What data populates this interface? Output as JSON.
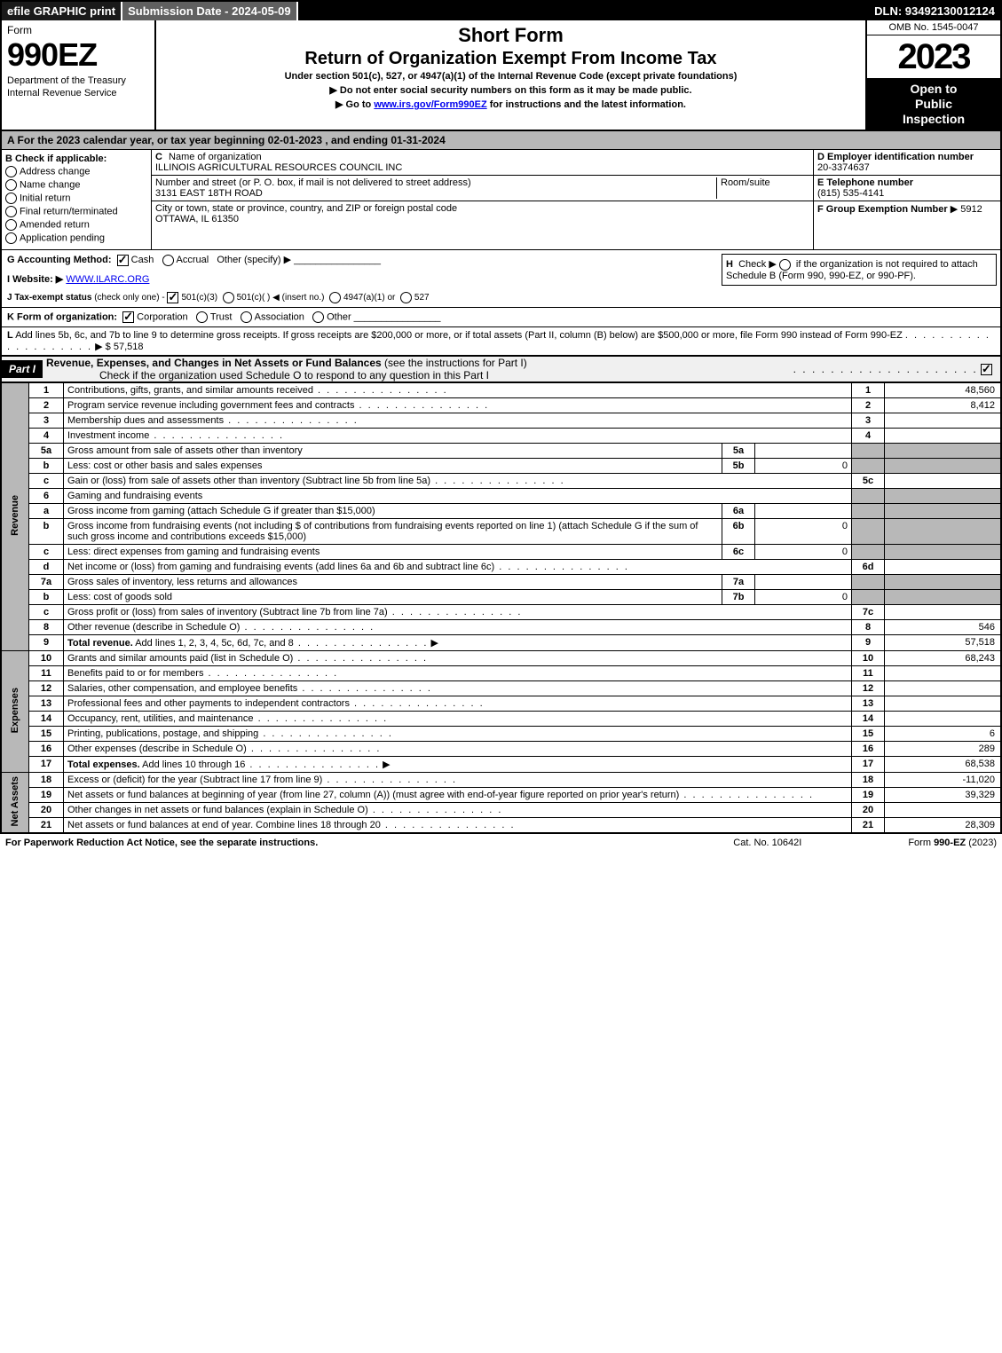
{
  "top_strip": {
    "efile": "efile GRAPHIC print",
    "submission": "Submission Date - 2024-05-09",
    "dln": "DLN: 93492130012124"
  },
  "header": {
    "form_label": "Form",
    "form_number": "990EZ",
    "dept1": "Department of the Treasury",
    "dept2": "Internal Revenue Service",
    "short_form": "Short Form",
    "main_title": "Return of Organization Exempt From Income Tax",
    "subtitle": "Under section 501(c), 527, or 4947(a)(1) of the Internal Revenue Code (except private foundations)",
    "instr1": "Do not enter social security numbers on this form as it may be made public.",
    "instr2_pre": "Go to ",
    "instr2_link": "www.irs.gov/Form990EZ",
    "instr2_post": " for instructions and the latest information.",
    "omb": "OMB No. 1545-0047",
    "year": "2023",
    "open1": "Open to",
    "open2": "Public",
    "open3": "Inspection"
  },
  "section_a": "A  For the 2023 calendar year, or tax year beginning 02-01-2023 , and ending 01-31-2024",
  "col_b": {
    "label": "B",
    "check_if": "Check if applicable:",
    "opts": [
      "Address change",
      "Name change",
      "Initial return",
      "Final return/terminated",
      "Amended return",
      "Application pending"
    ]
  },
  "col_c": {
    "name_label": "C",
    "name_text": "Name of organization",
    "org_name": "ILLINOIS AGRICULTURAL RESOURCES COUNCIL INC",
    "street_label": "Number and street (or P. O. box, if mail is not delivered to street address)",
    "room_label": "Room/suite",
    "street": "3131 EAST 18TH ROAD",
    "city_label": "City or town, state or province, country, and ZIP or foreign postal code",
    "city": "OTTAWA, IL  61350"
  },
  "col_d": {
    "ein_label": "D Employer identification number",
    "ein": "20-3374637",
    "phone_label": "E Telephone number",
    "phone": "(815) 535-4141",
    "group_label": "F Group Exemption Number",
    "group": "5912"
  },
  "g": {
    "label": "G Accounting Method:",
    "cash": "Cash",
    "accrual": "Accrual",
    "other": "Other (specify)"
  },
  "h": {
    "label": "H",
    "text1": "Check ▶",
    "text2": "if the organization is not required to attach Schedule B (Form 990, 990-EZ, or 990-PF)."
  },
  "i": {
    "label": "I Website: ▶",
    "site": "WWW.ILARC.ORG"
  },
  "j": {
    "label": "J Tax-exempt status",
    "note": "(check only one) -",
    "o1": "501(c)(3)",
    "o2": "501(c)(  )",
    "o2_note": "◀ (insert no.)",
    "o3": "4947(a)(1) or",
    "o4": "527"
  },
  "k": {
    "label": "K Form of organization:",
    "o1": "Corporation",
    "o2": "Trust",
    "o3": "Association",
    "o4": "Other"
  },
  "l": {
    "label": "L",
    "text": "Add lines 5b, 6c, and 7b to line 9 to determine gross receipts. If gross receipts are $200,000 or more, or if total assets (Part II, column (B) below) are $500,000 or more, file Form 990 instead of Form 990-EZ",
    "amount": "$ 57,518"
  },
  "part1": {
    "label": "Part I",
    "title": "Revenue, Expenses, and Changes in Net Assets or Fund Balances",
    "note": "(see the instructions for Part I)",
    "check_text": "Check if the organization used Schedule O to respond to any question in this Part I"
  },
  "revenue": {
    "side": "Revenue",
    "rows": [
      {
        "n": "1",
        "d": "Contributions, gifts, grants, and similar amounts received",
        "rn": "1",
        "rv": "48,560"
      },
      {
        "n": "2",
        "d": "Program service revenue including government fees and contracts",
        "rn": "2",
        "rv": "8,412"
      },
      {
        "n": "3",
        "d": "Membership dues and assessments",
        "rn": "3",
        "rv": ""
      },
      {
        "n": "4",
        "d": "Investment income",
        "rn": "4",
        "rv": ""
      },
      {
        "n": "5a",
        "d": "Gross amount from sale of assets other than inventory",
        "sn": "5a",
        "sv": "",
        "gray": true
      },
      {
        "n": "b",
        "d": "Less: cost or other basis and sales expenses",
        "sn": "5b",
        "sv": "0",
        "gray": true
      },
      {
        "n": "c",
        "d": "Gain or (loss) from sale of assets other than inventory (Subtract line 5b from line 5a)",
        "rn": "5c",
        "rv": ""
      },
      {
        "n": "6",
        "d": "Gaming and fundraising events",
        "gray": true,
        "gray_only": true
      },
      {
        "n": "a",
        "d": "Gross income from gaming (attach Schedule G if greater than $15,000)",
        "sn": "6a",
        "sv": "",
        "gray": true
      },
      {
        "n": "b",
        "d": "Gross income from fundraising events (not including $                    of contributions from fundraising events reported on line 1) (attach Schedule G if the sum of such gross income and contributions exceeds $15,000)",
        "sn": "6b",
        "sv": "0",
        "gray": true
      },
      {
        "n": "c",
        "d": "Less: direct expenses from gaming and fundraising events",
        "sn": "6c",
        "sv": "0",
        "gray": true
      },
      {
        "n": "d",
        "d": "Net income or (loss) from gaming and fundraising events (add lines 6a and 6b and subtract line 6c)",
        "rn": "6d",
        "rv": ""
      },
      {
        "n": "7a",
        "d": "Gross sales of inventory, less returns and allowances",
        "sn": "7a",
        "sv": "",
        "gray": true
      },
      {
        "n": "b",
        "d": "Less: cost of goods sold",
        "sn": "7b",
        "sv": "0",
        "gray": true
      },
      {
        "n": "c",
        "d": "Gross profit or (loss) from sales of inventory (Subtract line 7b from line 7a)",
        "rn": "7c",
        "rv": ""
      },
      {
        "n": "8",
        "d": "Other revenue (describe in Schedule O)",
        "rn": "8",
        "rv": "546"
      },
      {
        "n": "9",
        "d": "Total revenue. Add lines 1, 2, 3, 4, 5c, 6d, 7c, and 8",
        "rn": "9",
        "rv": "57,518",
        "bold": true,
        "arrow": true
      }
    ]
  },
  "expenses": {
    "side": "Expenses",
    "rows": [
      {
        "n": "10",
        "d": "Grants and similar amounts paid (list in Schedule O)",
        "rn": "10",
        "rv": "68,243"
      },
      {
        "n": "11",
        "d": "Benefits paid to or for members",
        "rn": "11",
        "rv": ""
      },
      {
        "n": "12",
        "d": "Salaries, other compensation, and employee benefits",
        "rn": "12",
        "rv": ""
      },
      {
        "n": "13",
        "d": "Professional fees and other payments to independent contractors",
        "rn": "13",
        "rv": ""
      },
      {
        "n": "14",
        "d": "Occupancy, rent, utilities, and maintenance",
        "rn": "14",
        "rv": ""
      },
      {
        "n": "15",
        "d": "Printing, publications, postage, and shipping",
        "rn": "15",
        "rv": "6"
      },
      {
        "n": "16",
        "d": "Other expenses (describe in Schedule O)",
        "rn": "16",
        "rv": "289"
      },
      {
        "n": "17",
        "d": "Total expenses. Add lines 10 through 16",
        "rn": "17",
        "rv": "68,538",
        "bold": true,
        "arrow": true
      }
    ]
  },
  "netassets": {
    "side": "Net Assets",
    "rows": [
      {
        "n": "18",
        "d": "Excess or (deficit) for the year (Subtract line 17 from line 9)",
        "rn": "18",
        "rv": "-11,020"
      },
      {
        "n": "19",
        "d": "Net assets or fund balances at beginning of year (from line 27, column (A)) (must agree with end-of-year figure reported on prior year's return)",
        "rn": "19",
        "rv": "39,329"
      },
      {
        "n": "20",
        "d": "Other changes in net assets or fund balances (explain in Schedule O)",
        "rn": "20",
        "rv": ""
      },
      {
        "n": "21",
        "d": "Net assets or fund balances at end of year. Combine lines 18 through 20",
        "rn": "21",
        "rv": "28,309"
      }
    ]
  },
  "footer": {
    "paperwork": "For Paperwork Reduction Act Notice, see the separate instructions.",
    "catno": "Cat. No. 10642I",
    "formno_pre": "Form ",
    "formno": "990-EZ",
    "formno_post": " (2023)"
  },
  "colors": {
    "black": "#000000",
    "gray_bg": "#b8b8b8",
    "light_gray": "#f0f0f0",
    "submission_bg": "#606060"
  }
}
